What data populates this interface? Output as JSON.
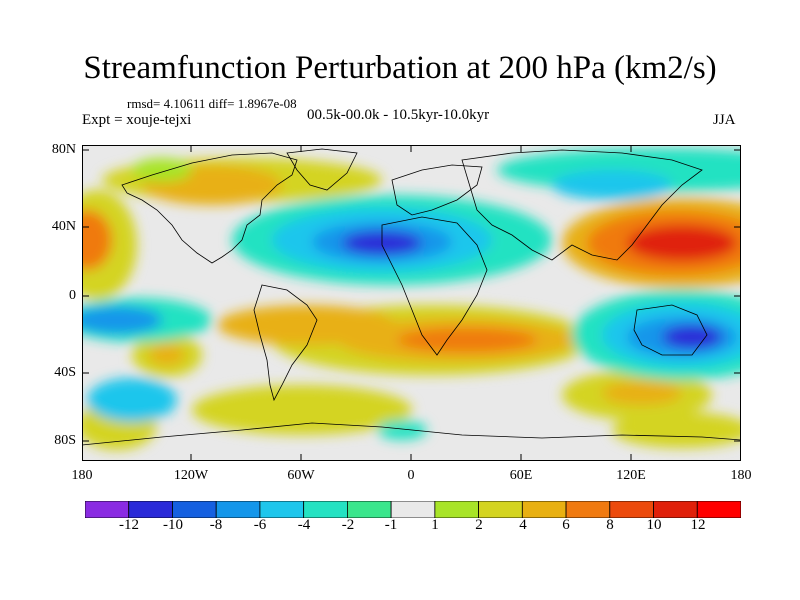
{
  "title": "Streamfunction Perturbation at 200 hPa (km2/s)",
  "stats": "rmsd= 4.10611 diff= 1.8967e-08",
  "expt": "Expt = xouje-tejxi",
  "period": "00.5k-00.0k - 10.5kyr-10.0kyr",
  "season": "JJA",
  "axes": {
    "y_labels": [
      "80N",
      "40N",
      "0",
      "40S",
      "80S"
    ],
    "x_labels": [
      "180",
      "120W",
      "60W",
      "0",
      "60E",
      "120E",
      "180"
    ]
  },
  "colorbar": {
    "labels": [
      "-12",
      "-10",
      "-8",
      "-6",
      "-4",
      "-2",
      "-1",
      "1",
      "2",
      "4",
      "6",
      "8",
      "10",
      "12"
    ],
    "colors": [
      "#8a2be2",
      "#2a2ad8",
      "#1560e0",
      "#1496ea",
      "#1ec6ec",
      "#24e2c2",
      "#3ae68c",
      "#e9e9e9",
      "#a8e428",
      "#d4d420",
      "#e8b012",
      "#f07a10",
      "#ec4a0c",
      "#e0200a",
      "#ff0000"
    ]
  },
  "map_colors": {
    "ocean": "#e9e9e9",
    "coast": "#000000"
  }
}
